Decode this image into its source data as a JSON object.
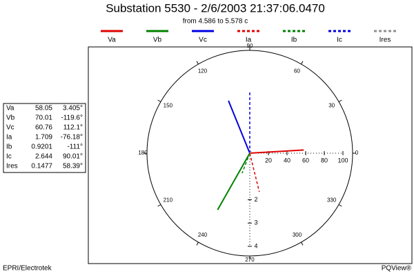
{
  "chart_data": {
    "type": "phasor",
    "title": "Substation 5530 - 2/6/2003 21:37:06.0470",
    "subtitle": "from 4.586 to 5.578 c",
    "rlim": [
      0,
      100
    ],
    "rticks": [
      20,
      40,
      60,
      80,
      100
    ],
    "r2lim": [
      0,
      4
    ],
    "r2ticks": [
      2,
      3,
      4
    ],
    "angle_ticks": [
      0,
      30,
      60,
      90,
      120,
      150,
      180,
      210,
      240,
      270,
      300,
      330
    ],
    "series": [
      {
        "name": "Va",
        "color": "#e00000",
        "style": "solid",
        "axis": "r",
        "magnitude": 58.05,
        "angle": 3.405,
        "angle_label": "3.405°"
      },
      {
        "name": "Vb",
        "color": "#008000",
        "style": "solid",
        "axis": "r",
        "magnitude": 70.01,
        "angle": -119.6,
        "angle_label": "-119.6°"
      },
      {
        "name": "Vc",
        "color": "#0000e0",
        "style": "solid",
        "axis": "r",
        "magnitude": 60.76,
        "angle": 112.1,
        "angle_label": "112.1°"
      },
      {
        "name": "Ia",
        "color": "#e00000",
        "style": "dashed",
        "axis": "r2",
        "magnitude": 1.709,
        "angle": -76.18,
        "angle_label": "-76.18°"
      },
      {
        "name": "Ib",
        "color": "#008000",
        "style": "dashed",
        "axis": "r2",
        "magnitude": 0.9201,
        "angle": -111,
        "angle_label": "-111°"
      },
      {
        "name": "Ic",
        "color": "#0000e0",
        "style": "dashed",
        "axis": "r2",
        "magnitude": 2.644,
        "angle": 90.01,
        "angle_label": "90.01°"
      },
      {
        "name": "Ires",
        "color": "#909090",
        "style": "dashed",
        "axis": "r2",
        "magnitude": 0.1477,
        "angle": 58.39,
        "angle_label": "58.39°"
      }
    ]
  },
  "footer": {
    "left": "EPRI/Electrotek",
    "right": "PQView®"
  }
}
